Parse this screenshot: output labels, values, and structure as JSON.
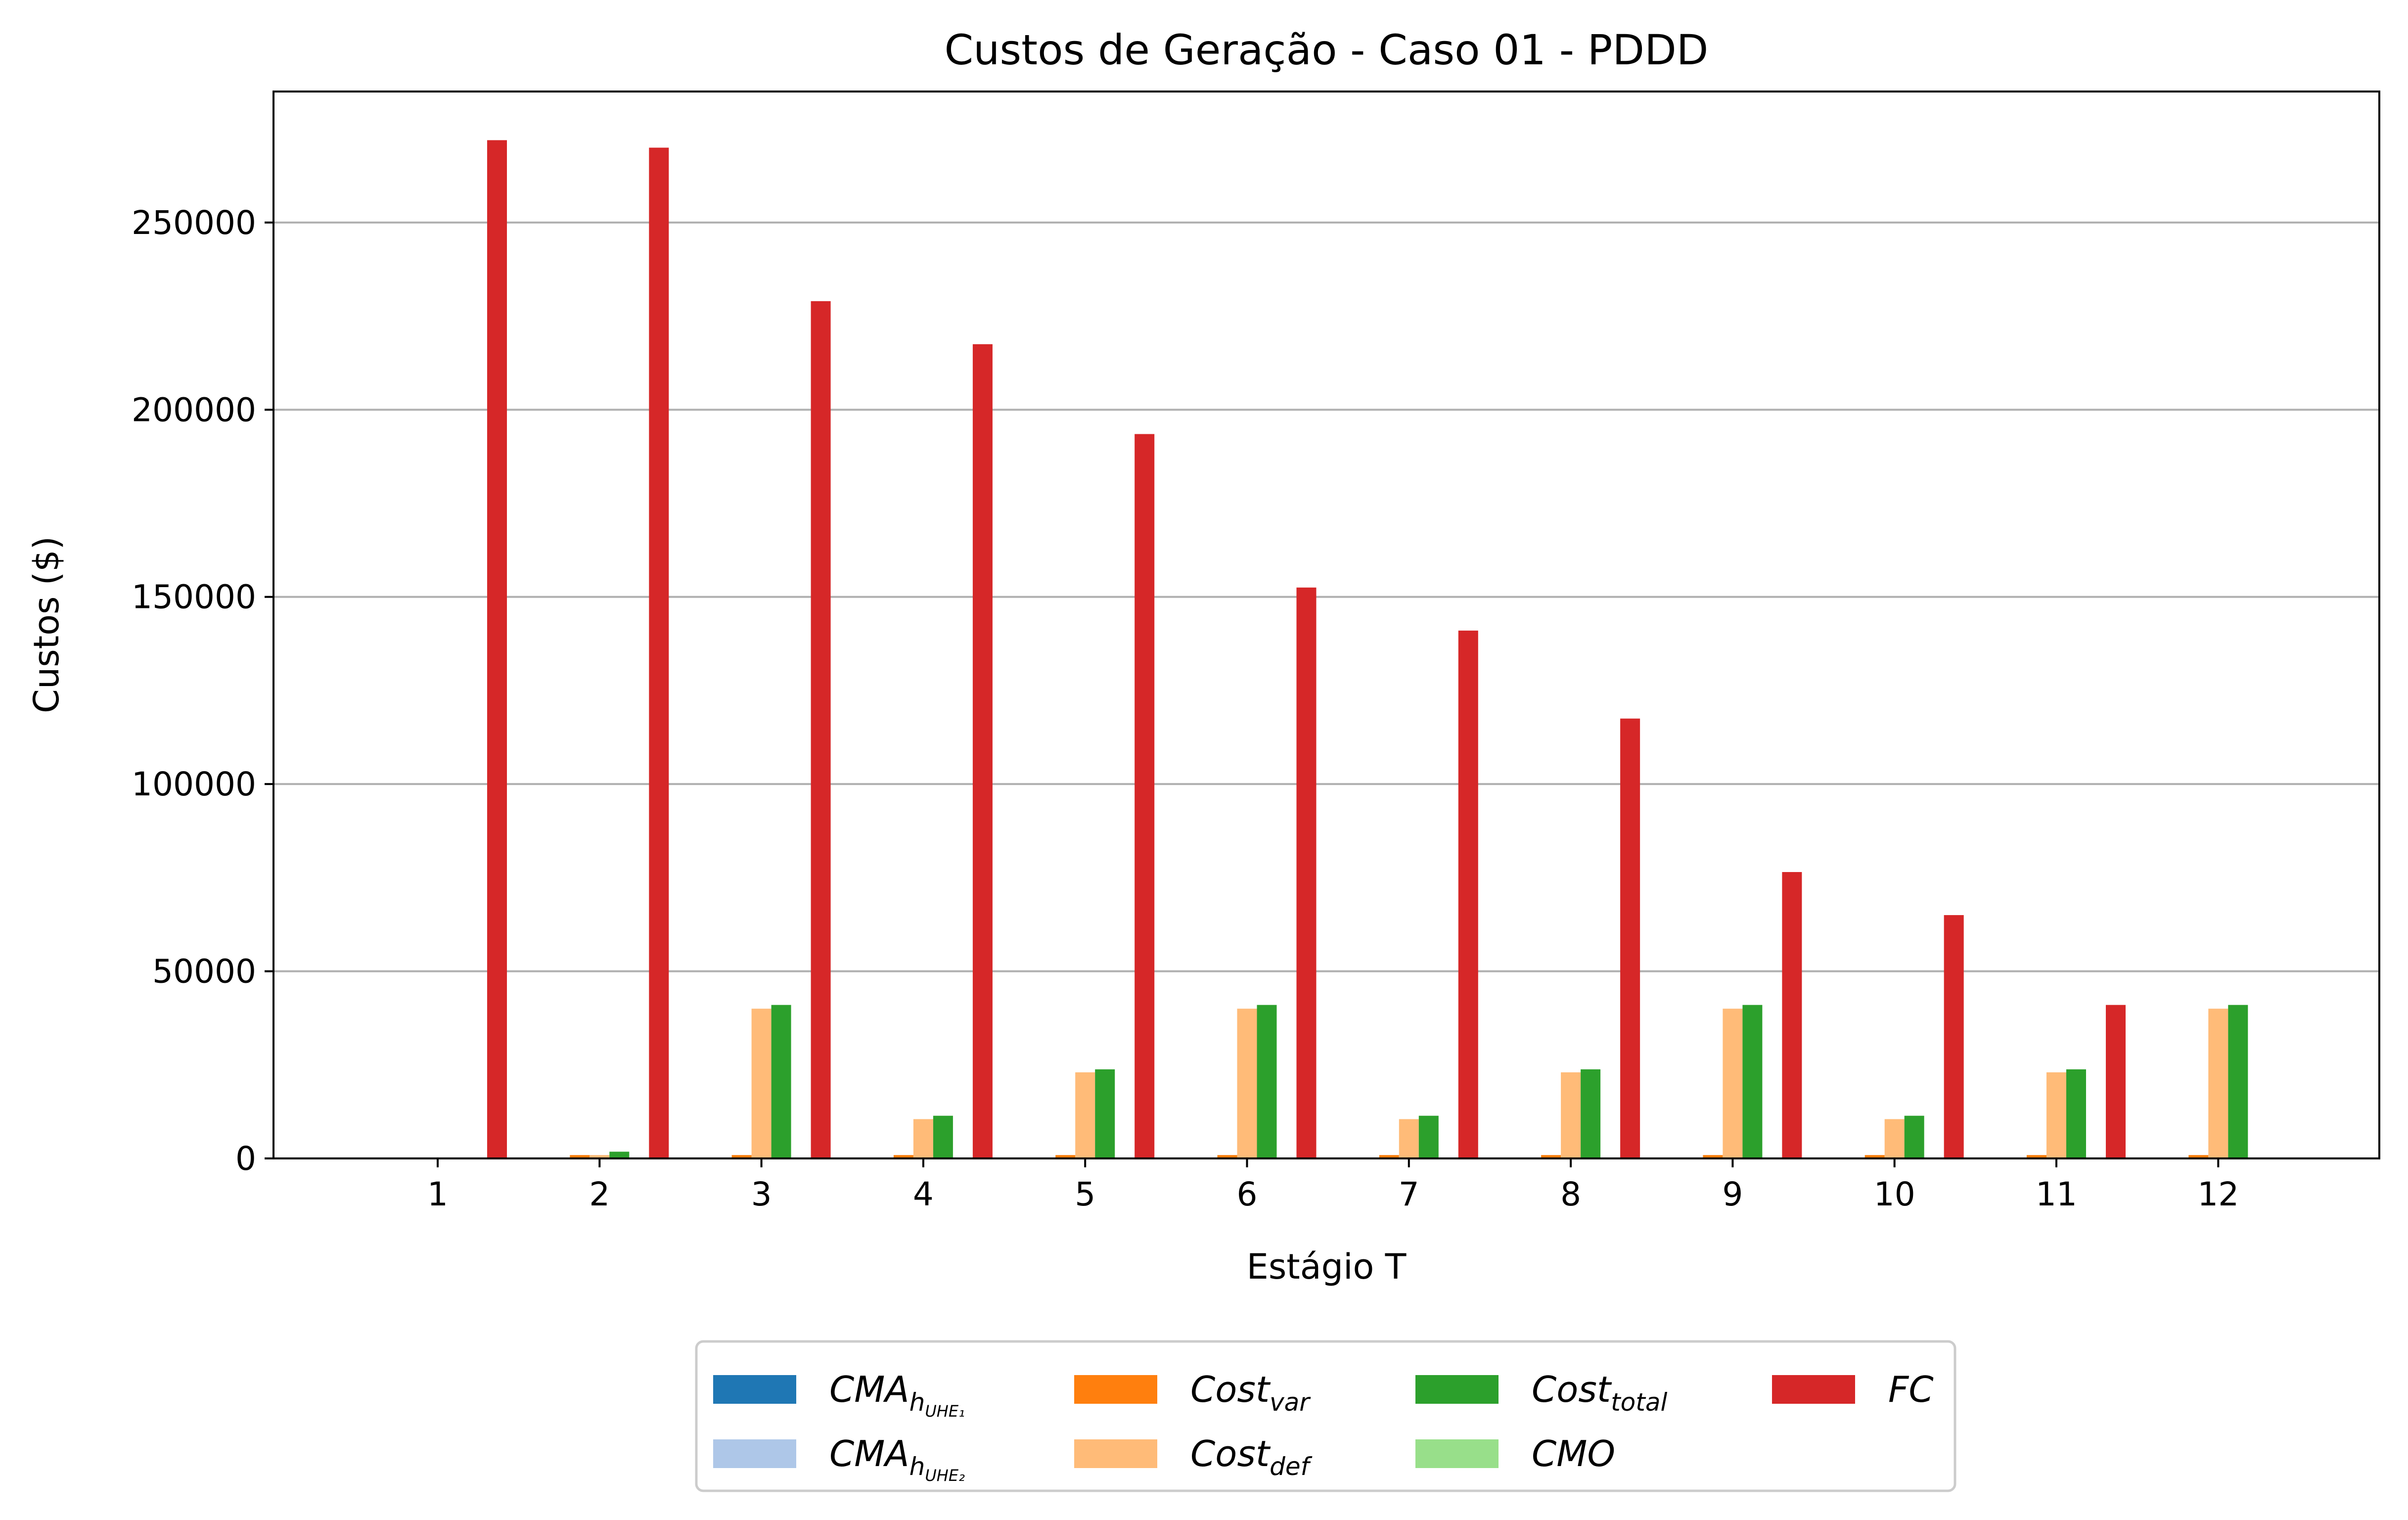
{
  "chart_data": {
    "type": "bar",
    "title": "Custos de Geração - Caso 01 - PDDD",
    "xlabel": "Estágio T",
    "ylabel": "Custos ($)",
    "categories": [
      "1",
      "2",
      "3",
      "4",
      "5",
      "6",
      "7",
      "8",
      "9",
      "10",
      "11",
      "12"
    ],
    "ylim": [
      0,
      285000
    ],
    "yticks": [
      0,
      50000,
      100000,
      150000,
      200000,
      250000
    ],
    "ytick_labels": [
      "0",
      "50000",
      "100000",
      "150000",
      "200000",
      "250000"
    ],
    "grid": "y",
    "legend_position": "below",
    "series": [
      {
        "name": "CMA",
        "name_sub": "h",
        "name_subsub": "UHE₁",
        "color": "#1f77b4",
        "values": [
          0,
          150,
          150,
          150,
          150,
          150,
          150,
          150,
          150,
          150,
          150,
          150
        ]
      },
      {
        "name": "CMA",
        "name_sub": "h",
        "name_subsub": "UHE₂",
        "color": "#aec7e8",
        "values": [
          0,
          150,
          150,
          150,
          150,
          150,
          150,
          150,
          150,
          150,
          150,
          150
        ]
      },
      {
        "name": "Cost",
        "name_sub": "var",
        "color": "#ff7f0e",
        "values": [
          0,
          900,
          900,
          900,
          900,
          900,
          900,
          900,
          900,
          900,
          900,
          900
        ]
      },
      {
        "name": "Cost",
        "name_sub": "def",
        "color": "#ffbb78",
        "values": [
          0,
          900,
          40000,
          10500,
          23000,
          40000,
          10500,
          23000,
          40000,
          10500,
          23000,
          40000
        ]
      },
      {
        "name": "Cost",
        "name_sub": "total",
        "color": "#2ca02c",
        "values": [
          0,
          1800,
          41000,
          11400,
          23800,
          41000,
          11400,
          23800,
          41000,
          11400,
          23800,
          41000
        ]
      },
      {
        "name": "CMO",
        "color": "#98df8a",
        "values": [
          0,
          0,
          0,
          0,
          0,
          0,
          0,
          0,
          0,
          0,
          0,
          0
        ]
      },
      {
        "name": "FC",
        "color": "#d62728",
        "values": [
          272000,
          270000,
          229000,
          217500,
          193500,
          152500,
          141000,
          117500,
          76500,
          65000,
          41000,
          0
        ]
      }
    ]
  }
}
